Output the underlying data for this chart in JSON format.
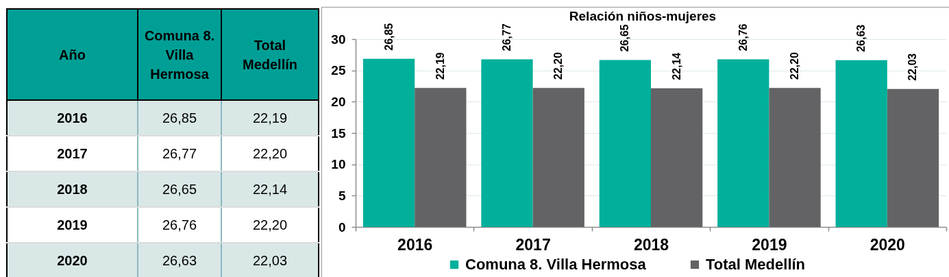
{
  "chart_data": {
    "type": "bar",
    "title": "Relación niños-mujeres",
    "categories": [
      "2016",
      "2017",
      "2018",
      "2019",
      "2020"
    ],
    "series": [
      {
        "name": "Comuna 8. Villa Hermosa",
        "color": "#00b09b",
        "values": [
          26.85,
          26.77,
          26.65,
          26.76,
          26.63
        ],
        "value_labels": [
          "26,85",
          "26,77",
          "26,65",
          "26,76",
          "26,63"
        ]
      },
      {
        "name": "Total Medellín",
        "color": "#636365",
        "values": [
          22.19,
          22.2,
          22.14,
          22.2,
          22.03
        ],
        "value_labels": [
          "22,19",
          "22,20",
          "22,14",
          "22,20",
          "22,03"
        ]
      }
    ],
    "ylim": [
      0,
      30
    ],
    "yticks": [
      0,
      5,
      10,
      15,
      20,
      25,
      30
    ],
    "grid": "y",
    "legend": "bottom",
    "annotations": [
      "Año"
    ]
  }
}
